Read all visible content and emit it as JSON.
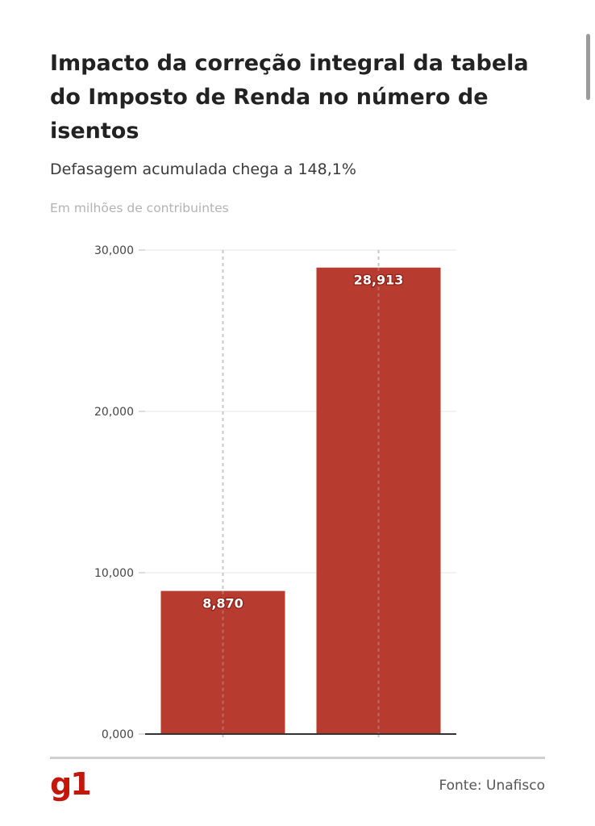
{
  "header": {
    "title": "Impacto da correção integral da tabela do Imposto de Renda no número de isentos",
    "subtitle": "Defasagem acumulada chega a 148,1%",
    "unit_note": "Em milhões de contribuintes"
  },
  "footer": {
    "logo": "g1",
    "source": "Fonte: Unafisco"
  },
  "colors": {
    "bar": "#b83b30",
    "logo": "#c4170c"
  },
  "chart_data": {
    "type": "bar",
    "categories": [
      "",
      ""
    ],
    "values": [
      8.87,
      28.913
    ],
    "data_labels": [
      "8,870",
      "28,913"
    ],
    "yticks": [
      0,
      10,
      20,
      30
    ],
    "ytick_labels": [
      "0,000",
      "10,000",
      "20,000",
      "30,000"
    ],
    "ylim": [
      0,
      30
    ],
    "grid": true,
    "legend": "none"
  }
}
